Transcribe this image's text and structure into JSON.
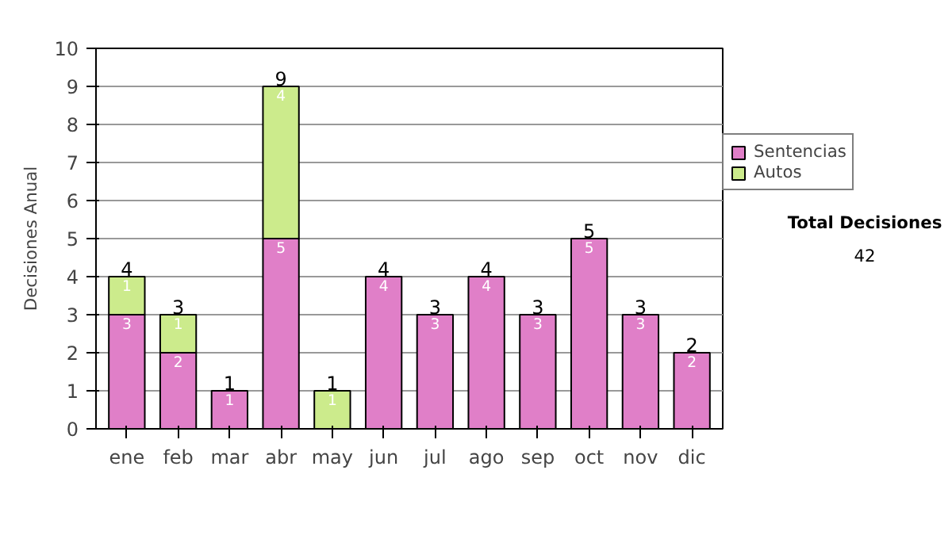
{
  "chart_data": {
    "type": "bar",
    "stacked": true,
    "ylabel": "Decisiones Anual",
    "categories": [
      "ene",
      "feb",
      "mar",
      "abr",
      "may",
      "jun",
      "jul",
      "ago",
      "sep",
      "oct",
      "nov",
      "dic"
    ],
    "series": [
      {
        "name": "Sentencias",
        "color": "#e07fc8",
        "values": [
          3,
          2,
          1,
          5,
          0,
          4,
          3,
          4,
          3,
          5,
          3,
          2
        ],
        "value_labels": [
          "3",
          "2",
          "1",
          "5",
          null,
          "4",
          "3",
          "4",
          "3",
          "5",
          "3",
          "2"
        ]
      },
      {
        "name": "Autos",
        "color": "#cceb8c",
        "values": [
          1,
          1,
          0,
          4,
          1,
          0,
          0,
          0,
          0,
          0,
          0,
          0
        ],
        "value_labels": [
          "1",
          "1",
          null,
          "4",
          "1",
          null,
          null,
          null,
          null,
          null,
          null,
          null
        ]
      }
    ],
    "totals": [
      "4",
      "3",
      "1",
      "9",
      "1",
      "4",
      "3",
      "4",
      "3",
      "5",
      "3",
      "2"
    ],
    "ylim": [
      0,
      10
    ],
    "yticks": [
      0,
      1,
      2,
      3,
      4,
      5,
      6,
      7,
      8,
      9,
      10
    ],
    "grid": "y",
    "legend": "right",
    "annotations": [
      "Total Decisiones",
      "42"
    ]
  }
}
